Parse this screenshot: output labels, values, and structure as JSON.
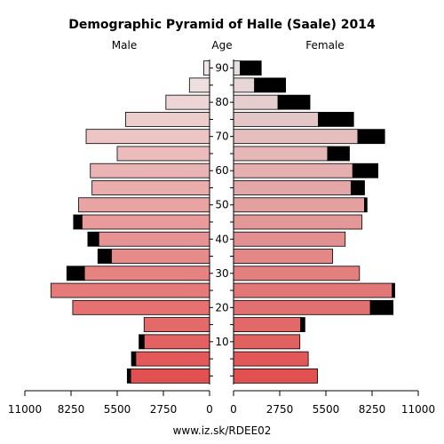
{
  "chart_data": {
    "type": "bar",
    "title": "Demographic Pyramid of Halle (Saale) 2014",
    "left_label": "Male",
    "center_label": "Age",
    "right_label": "Female",
    "source": "www.iz.sk/RDEE02",
    "x_ticks_male": [
      "11000",
      "8250",
      "5500",
      "2750",
      "0"
    ],
    "x_ticks_female": [
      "0",
      "2750",
      "5500",
      "8250",
      "11000"
    ],
    "xlim": [
      0,
      11000
    ],
    "age_ticks": [
      "90",
      "80",
      "70",
      "60",
      "50",
      "40",
      "30",
      "20",
      "10"
    ],
    "age_groups": [
      "0-4",
      "5-9",
      "10-14",
      "15-19",
      "20-24",
      "25-29",
      "30-34",
      "35-39",
      "40-44",
      "45-49",
      "50-54",
      "55-59",
      "60-64",
      "65-69",
      "70-74",
      "75-79",
      "80-84",
      "85-89",
      "90+"
    ],
    "series": [
      {
        "name": "Male",
        "values": [
          4700,
          4400,
          3900,
          3900,
          8150,
          9450,
          7450,
          5850,
          6600,
          7600,
          7800,
          7000,
          7100,
          5500,
          7350,
          5000,
          2600,
          1200,
          350
        ],
        "excess": [
          200,
          250,
          300,
          0,
          0,
          0,
          1050,
          800,
          650,
          500,
          0,
          0,
          0,
          0,
          0,
          0,
          0,
          0,
          0
        ]
      },
      {
        "name": "Female",
        "values": [
          5000,
          4450,
          3950,
          4000,
          8150,
          9450,
          7500,
          5900,
          6650,
          7650,
          7800,
          7000,
          7100,
          5600,
          7400,
          5050,
          2650,
          1250,
          400
        ],
        "excess": [
          0,
          0,
          0,
          250,
          1350,
          150,
          0,
          0,
          0,
          0,
          150,
          800,
          1500,
          1300,
          1600,
          2100,
          1900,
          1850,
          1250
        ]
      }
    ]
  }
}
